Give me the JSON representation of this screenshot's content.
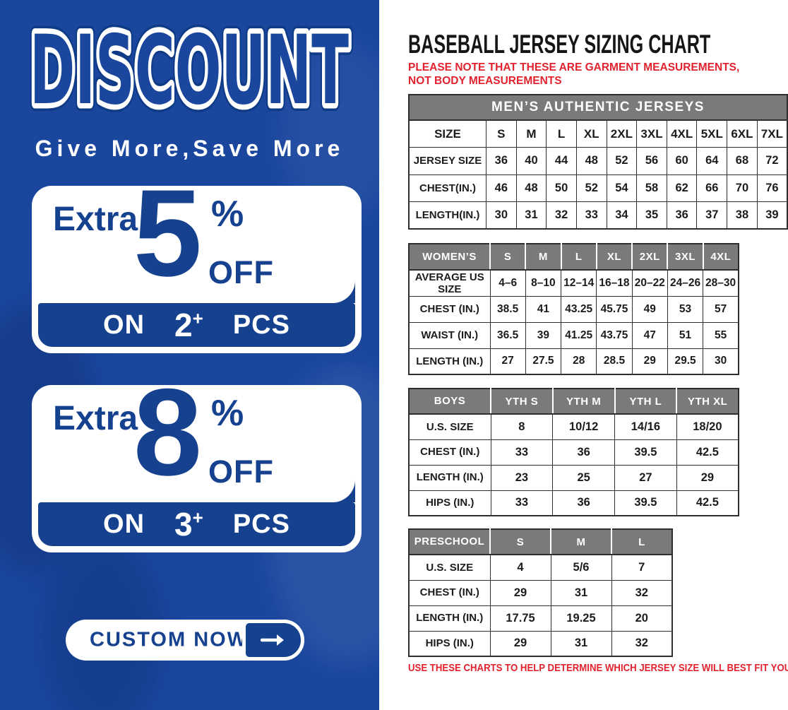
{
  "colors": {
    "panel_blue": "#1a469e",
    "accent_blue": "#15418f",
    "header_gray": "#7a7a7a",
    "note_red": "#e0232e"
  },
  "left_panel": {
    "title": "DISCOUNT",
    "subtitle": "Give More,Save More",
    "offers": [
      {
        "extra": "Extra",
        "number": "5",
        "percent": "%",
        "off": "OFF",
        "on": "ON",
        "qty": "2",
        "plus": "+",
        "pcs": "PCS"
      },
      {
        "extra": "Extra",
        "number": "8",
        "percent": "%",
        "off": "OFF",
        "on": "ON",
        "qty": "3",
        "plus": "+",
        "pcs": "PCS"
      }
    ],
    "cta": {
      "label": "CUSTOM NOW",
      "icon": "arrow-right-icon"
    }
  },
  "right_panel": {
    "title": "BASEBALL JERSEY SIZING CHART",
    "note_top": "PLEASE NOTE THAT THESE ARE GARMENT MEASUREMENTS, NOT BODY MEASUREMENTS",
    "note_bottom": "USE THESE CHARTS TO HELP DETERMINE WHICH JERSEY SIZE WILL BEST FIT YOU.",
    "tables": [
      {
        "id": "mens",
        "banner": "MEN’S AUTHENTIC JERSEYS",
        "gray_header": false,
        "header": {
          "label": "SIZE",
          "cols": [
            "S",
            "M",
            "L",
            "XL",
            "2XL",
            "3XL",
            "4XL",
            "5XL",
            "6XL",
            "7XL"
          ]
        },
        "rows": [
          {
            "label": "JERSEY SIZE",
            "values": [
              "36",
              "40",
              "44",
              "48",
              "52",
              "56",
              "60",
              "64",
              "68",
              "72"
            ]
          },
          {
            "label": "CHEST(IN.)",
            "values": [
              "46",
              "48",
              "50",
              "52",
              "54",
              "58",
              "62",
              "66",
              "70",
              "76"
            ]
          },
          {
            "label": "LENGTH(IN.)",
            "values": [
              "30",
              "31",
              "32",
              "33",
              "34",
              "35",
              "36",
              "37",
              "38",
              "39"
            ]
          }
        ]
      },
      {
        "id": "womens",
        "banner": null,
        "gray_header": true,
        "header": {
          "label": "WOMEN’S",
          "cols": [
            "S",
            "M",
            "L",
            "XL",
            "2XL",
            "3XL",
            "4XL"
          ]
        },
        "rows": [
          {
            "label": "AVERAGE US SIZE",
            "values": [
              "4–6",
              "8–10",
              "12–14",
              "16–18",
              "20–22",
              "24–26",
              "28–30"
            ]
          },
          {
            "label": "CHEST (IN.)",
            "values": [
              "38.5",
              "41",
              "43.25",
              "45.75",
              "49",
              "53",
              "57"
            ]
          },
          {
            "label": "WAIST (IN.)",
            "values": [
              "36.5",
              "39",
              "41.25",
              "43.75",
              "47",
              "51",
              "55"
            ]
          },
          {
            "label": "LENGTH (IN.)",
            "values": [
              "27",
              "27.5",
              "28",
              "28.5",
              "29",
              "29.5",
              "30"
            ]
          }
        ]
      },
      {
        "id": "boys",
        "banner": null,
        "gray_header": true,
        "header": {
          "label": "BOYS",
          "cols": [
            "YTH S",
            "YTH M",
            "YTH L",
            "YTH XL"
          ]
        },
        "rows": [
          {
            "label": "U.S. SIZE",
            "values": [
              "8",
              "10/12",
              "14/16",
              "18/20"
            ]
          },
          {
            "label": "CHEST (IN.)",
            "values": [
              "33",
              "36",
              "39.5",
              "42.5"
            ]
          },
          {
            "label": "LENGTH (IN.)",
            "values": [
              "23",
              "25",
              "27",
              "29"
            ]
          },
          {
            "label": "HIPS (IN.)",
            "values": [
              "33",
              "36",
              "39.5",
              "42.5"
            ]
          }
        ]
      },
      {
        "id": "preschool",
        "banner": null,
        "gray_header": true,
        "header": {
          "label": "PRESCHOOL",
          "cols": [
            "S",
            "M",
            "L"
          ]
        },
        "rows": [
          {
            "label": "U.S. SIZE",
            "values": [
              "4",
              "5/6",
              "7"
            ]
          },
          {
            "label": "CHEST (IN.)",
            "values": [
              "29",
              "31",
              "32"
            ]
          },
          {
            "label": "LENGTH (IN.)",
            "values": [
              "17.75",
              "19.25",
              "20"
            ]
          },
          {
            "label": "HIPS (IN.)",
            "values": [
              "29",
              "31",
              "32"
            ]
          }
        ]
      }
    ]
  }
}
